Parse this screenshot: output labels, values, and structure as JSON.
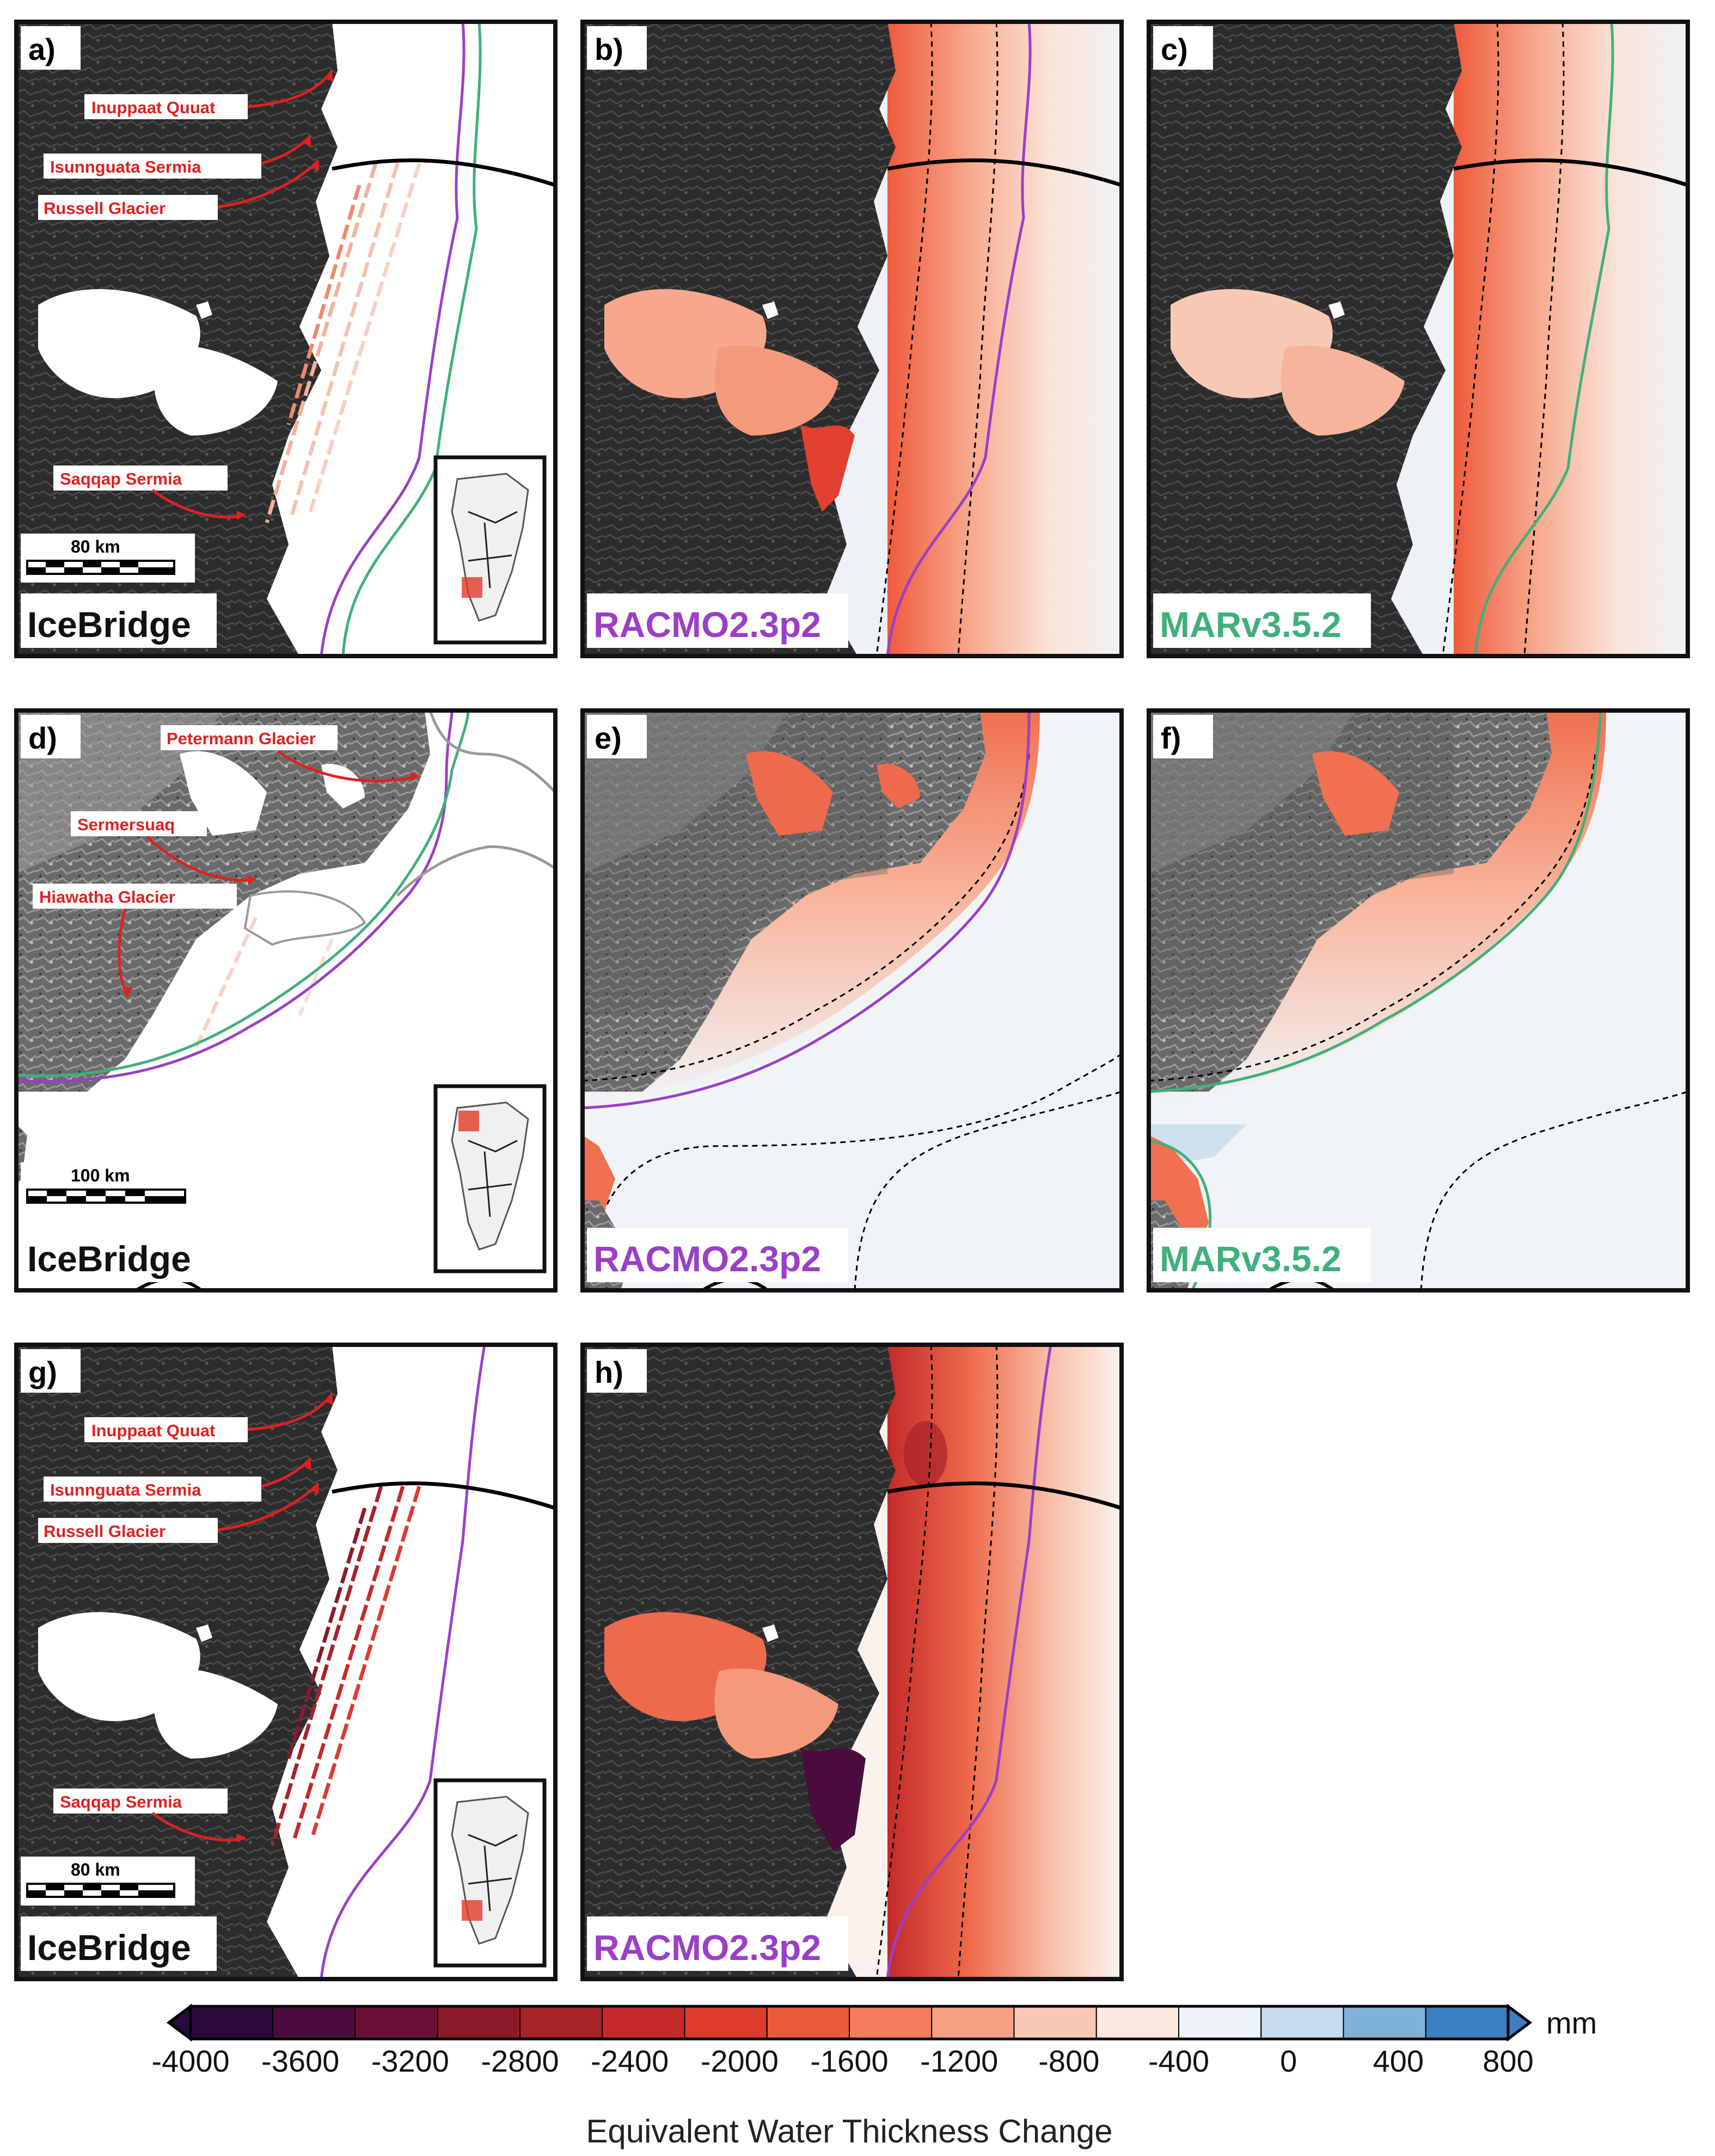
{
  "panels": [
    {
      "id": "a",
      "label": "a)",
      "source": "IceBridge",
      "scale": "80 km",
      "annotations": [
        "Inuppaat Quuat",
        "Isunnguata Sermia",
        "Russell Glacier",
        "Saqqap Sermia"
      ]
    },
    {
      "id": "b",
      "label": "b)",
      "source": "RACMO2.3p2"
    },
    {
      "id": "c",
      "label": "c)",
      "source": "MARv3.5.2"
    },
    {
      "id": "d",
      "label": "d)",
      "source": "IceBridge",
      "scale": "100 km",
      "annotations": [
        "Petermann Glacier",
        "Sermersuaq",
        "Hiawatha Glacier"
      ]
    },
    {
      "id": "e",
      "label": "e)",
      "source": "RACMO2.3p2"
    },
    {
      "id": "f",
      "label": "f)",
      "source": "MARv3.5.2"
    },
    {
      "id": "g",
      "label": "g)",
      "source": "IceBridge",
      "scale": "80 km",
      "annotations": [
        "Inuppaat Quuat",
        "Isunnguata Sermia",
        "Russell Glacier",
        "Saqqap Sermia"
      ]
    },
    {
      "id": "h",
      "label": "h)",
      "source": "RACMO2.3p2"
    }
  ],
  "colorbar": {
    "title": "Equivalent Water Thickness Change",
    "unit": "mm",
    "ticks": [
      "-4000",
      "-3600",
      "-3200",
      "-2800",
      "-2400",
      "-2000",
      "-1600",
      "-1200",
      "-800",
      "-400",
      "0",
      "400",
      "800"
    ],
    "colors": [
      "#2a0a3c",
      "#4a0c3e",
      "#6a0f35",
      "#8a1a2a",
      "#a8222a",
      "#c42a2a",
      "#dc3b2e",
      "#ea5a3c",
      "#f27c5c",
      "#f6a184",
      "#f9c8b4",
      "#fbe8de",
      "#eef3f7",
      "#c6dcec",
      "#7fb2d8",
      "#3b7fc0"
    ]
  },
  "colors": {
    "racmo": "#9b3fc7",
    "mar": "#3fb07a",
    "annotation": "#e02020"
  }
}
